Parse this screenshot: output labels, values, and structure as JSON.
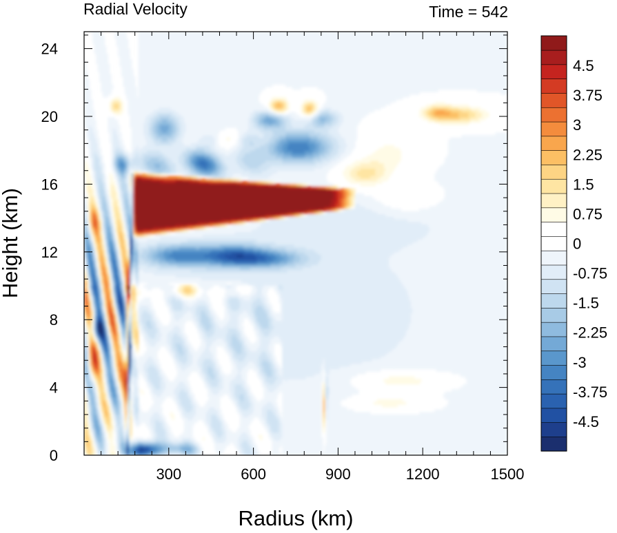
{
  "chart_data": {
    "type": "heatmap",
    "title": "Radial Velocity",
    "annotation": "Time = 542",
    "xlabel": "Radius (km)",
    "ylabel": "Height (km)",
    "xlim": [
      0,
      1500
    ],
    "ylim": [
      0,
      25
    ],
    "x_ticks": [
      300,
      600,
      900,
      1200,
      1500
    ],
    "x_tick_labels": [
      "300",
      "600",
      "900",
      "1200",
      "1500"
    ],
    "y_ticks": [
      0,
      4,
      8,
      12,
      16,
      20,
      24
    ],
    "y_tick_labels": [
      "0",
      "4",
      "8",
      "12",
      "16",
      "20",
      "24"
    ],
    "colorbar": {
      "min": -5.25,
      "max": 5.25,
      "step": 0.375,
      "colors": [
        "#1b2f6e",
        "#1e3f8c",
        "#2151a3",
        "#2a62b0",
        "#3572b9",
        "#4584c2",
        "#5a97cc",
        "#74a9d6",
        "#8fbbdf",
        "#a8cbe6",
        "#bdd8ed",
        "#d0e3f3",
        "#e1edf8",
        "#eff5fb",
        "#ffffff",
        "#ffffff",
        "#fffbe6",
        "#fff1c5",
        "#fee5a3",
        "#fdd484",
        "#fcbf64",
        "#f9a64d",
        "#f48c3d",
        "#ec7131",
        "#e15628",
        "#d43b23",
        "#c5241f",
        "#a81e1e",
        "#901a1a"
      ],
      "tick_values": [
        4.5,
        3.75,
        3,
        2.25,
        1.5,
        0.75,
        0,
        -0.75,
        -1.5,
        -2.25,
        -3,
        -3.75,
        -4.5
      ],
      "tick_labels": [
        "4.5",
        "3.75",
        "3",
        "2.25",
        "1.5",
        "0.75",
        "0",
        "-0.75",
        "-1.5",
        "-2.25",
        "-3",
        "-3.75",
        "-4.5"
      ]
    },
    "features": [
      {
        "kind": "outflow-jet",
        "sign": "positive",
        "r_range": [
          160,
          940
        ],
        "z_range": [
          13.0,
          16.5
        ],
        "value": 5.5
      },
      {
        "kind": "inflow-layer",
        "sign": "negative",
        "r_range": [
          180,
          700
        ],
        "z_range": [
          10.8,
          12.6
        ],
        "value": -4.3
      },
      {
        "kind": "inflow-layer",
        "sign": "negative",
        "r_range": [
          150,
          900
        ],
        "z_range": [
          16.4,
          19.8
        ],
        "value": -3.5
      },
      {
        "kind": "upper-outflow",
        "sign": "positive",
        "r_range": [
          1180,
          1490
        ],
        "z_range": [
          19.0,
          20.8
        ],
        "value": 2.2
      },
      {
        "kind": "boundary-inflow",
        "sign": "negative",
        "r_range": [
          170,
          260
        ],
        "z_range": [
          0,
          0.8
        ],
        "value": -4.8
      },
      {
        "kind": "eyewall",
        "sign": "mixed",
        "r_range": [
          120,
          180
        ],
        "z_range": [
          0,
          16.5
        ],
        "value": 4.0
      }
    ]
  }
}
